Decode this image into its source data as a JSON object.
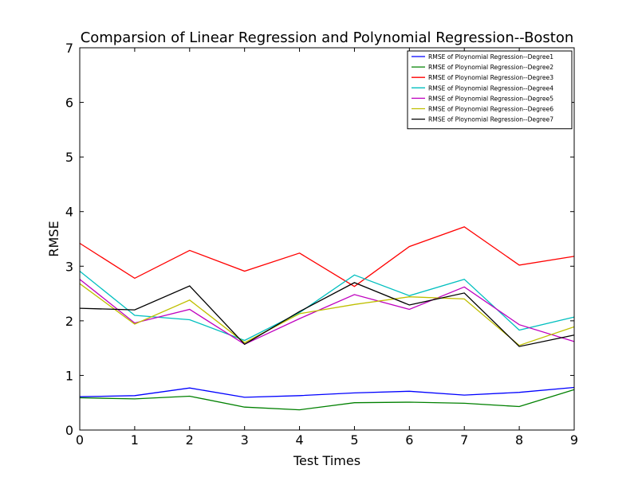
{
  "chart_data": {
    "type": "line",
    "title": "Comparsion of Linear Regression and Polynomial Regression--Boston",
    "xlabel": "Test Times",
    "ylabel": "RMSE",
    "xlim": [
      0,
      9
    ],
    "ylim": [
      0,
      7
    ],
    "xticks": [
      0,
      1,
      2,
      3,
      4,
      5,
      6,
      7,
      8,
      9
    ],
    "yticks": [
      0,
      1,
      2,
      3,
      4,
      5,
      6,
      7
    ],
    "grid": false,
    "legend_position": "top-right",
    "x": [
      0,
      1,
      2,
      3,
      4,
      5,
      6,
      7,
      8,
      9
    ],
    "series": [
      {
        "name": "RMSE of Ploynomial Regression--Degree1",
        "color": "#0000ff",
        "values": [
          0.61,
          0.63,
          0.77,
          0.6,
          0.63,
          0.68,
          0.71,
          0.64,
          0.69,
          0.78
        ]
      },
      {
        "name": "RMSE of Ploynomial Regression--Degree2",
        "color": "#008000",
        "values": [
          0.59,
          0.57,
          0.62,
          0.42,
          0.37,
          0.5,
          0.51,
          0.49,
          0.43,
          0.74
        ]
      },
      {
        "name": "RMSE of Ploynomial Regression--Degree3",
        "color": "#ff0000",
        "values": [
          3.42,
          2.78,
          3.29,
          2.91,
          3.24,
          2.63,
          3.36,
          3.72,
          3.02,
          3.18
        ]
      },
      {
        "name": "RMSE of Ploynomial Regression--Degree4",
        "color": "#00bfbf",
        "values": [
          2.91,
          2.1,
          2.02,
          1.64,
          2.15,
          2.84,
          2.46,
          2.76,
          1.83,
          2.07
        ]
      },
      {
        "name": "RMSE of Ploynomial Regression--Degree5",
        "color": "#bf00bf",
        "values": [
          2.76,
          1.96,
          2.21,
          1.57,
          2.04,
          2.48,
          2.21,
          2.62,
          1.93,
          1.62
        ]
      },
      {
        "name": "RMSE of Ploynomial Regression--Degree6",
        "color": "#bfbf00",
        "values": [
          2.68,
          1.94,
          2.38,
          1.6,
          2.13,
          2.3,
          2.44,
          2.4,
          1.55,
          1.89
        ]
      },
      {
        "name": "RMSE of Ploynomial Regression--Degree7",
        "color": "#000000",
        "values": [
          2.23,
          2.2,
          2.64,
          1.57,
          2.17,
          2.7,
          2.29,
          2.51,
          1.53,
          1.74
        ]
      }
    ]
  }
}
